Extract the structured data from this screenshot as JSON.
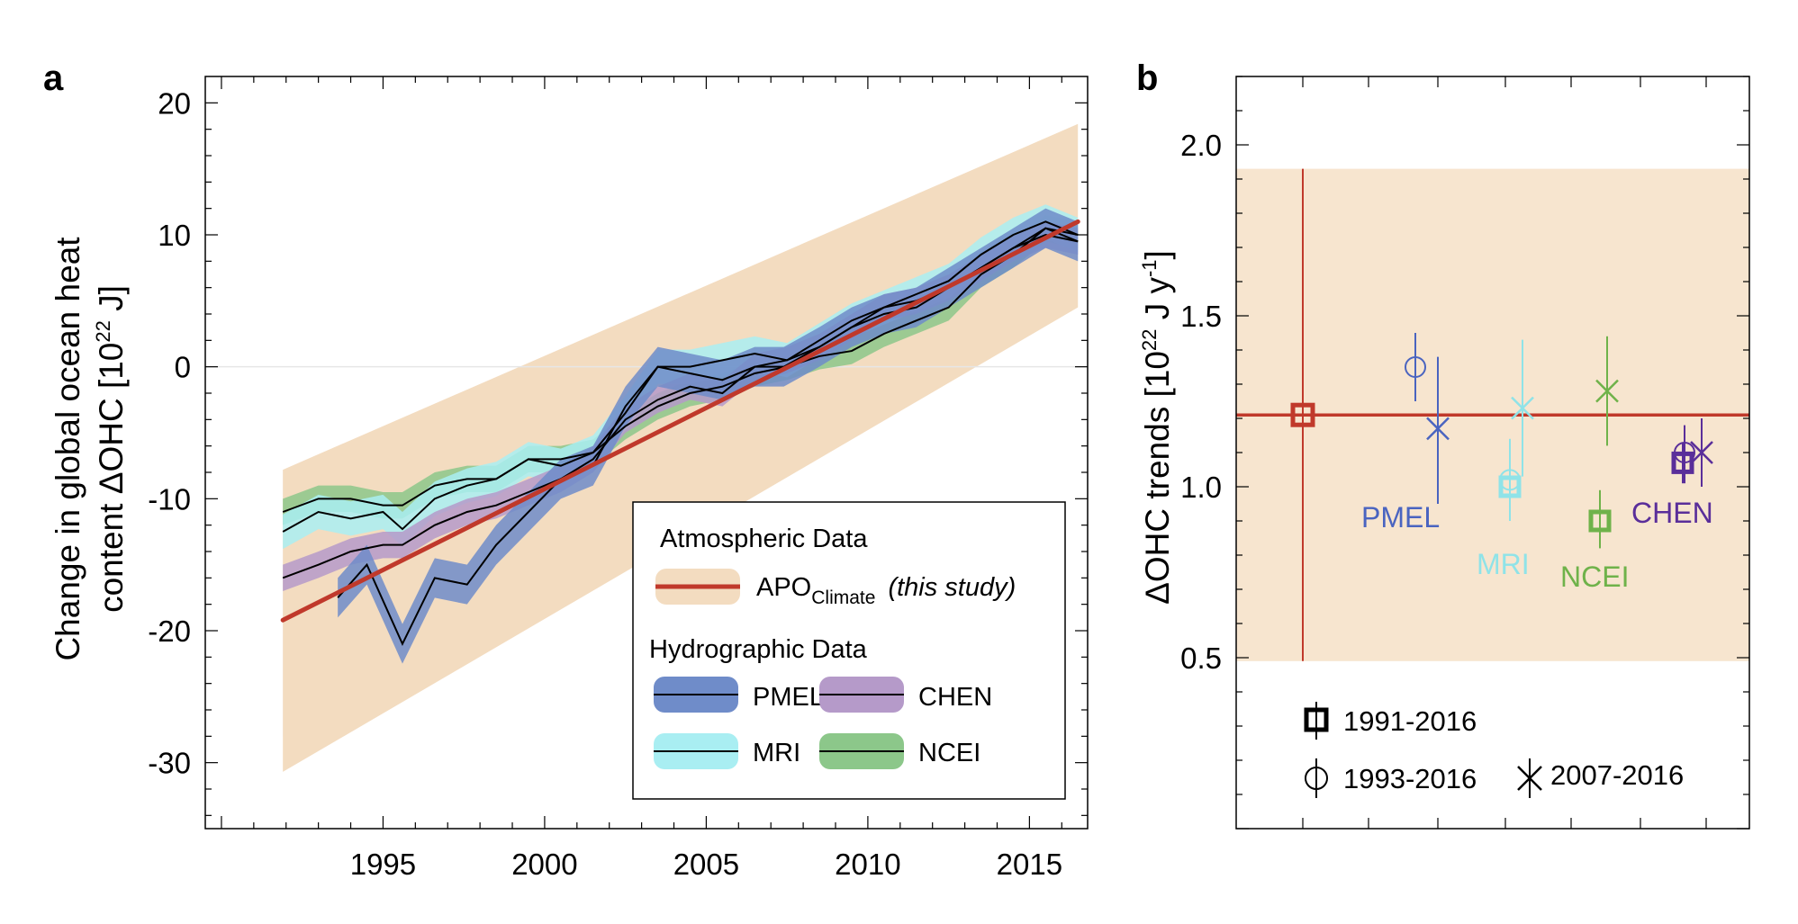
{
  "chart_data": [
    {
      "panel_label": "a",
      "type": "line",
      "ylabel_line1": "Change in global ocean heat",
      "ylabel_line2_pre": "content  ΔOHC  [10",
      "ylabel_sup": "22",
      "ylabel_post": " J]",
      "xlim": [
        1989.5,
        2016.8
      ],
      "ylim": [
        -35,
        22
      ],
      "xticks": [
        1995,
        2000,
        2005,
        2010,
        2015
      ],
      "yticks": [
        20,
        10,
        0,
        -10,
        -20,
        -30
      ],
      "zero_line": true,
      "legend": {
        "placement": "lower-right",
        "atmos_header": "Atmospheric Data",
        "apo_name": "APO",
        "apo_sub": "Climate",
        "apo_note": "(this study)",
        "hydro_header": "Hydrographic Data",
        "entries": [
          "PMEL",
          "CHEN",
          "MRI",
          "NCEI"
        ]
      },
      "colors": {
        "apo_line": "#c0392b",
        "apo_band": "#f3dcc0",
        "PMEL": "#6f8cc9",
        "CHEN": "#b59ac9",
        "MRI": "#a9eef2",
        "NCEI": "#8cc78a"
      },
      "apo": {
        "x": [
          1991.9,
          2016.5
        ],
        "y": [
          -19.2,
          11.0
        ],
        "band_upper": [
          -7.8,
          18.4
        ],
        "band_lower": [
          -30.7,
          4.5
        ]
      },
      "series": [
        {
          "name": "PMEL",
          "x": [
            1993.6,
            1994.5,
            1995.6,
            1996.6,
            1997.6,
            1998.5,
            1999.5,
            2000.5,
            2001.5,
            2002.5,
            2003.5,
            2004.5,
            2005.5,
            2006.5,
            2007.4,
            2008.5,
            2009.5,
            2010.5,
            2011.5,
            2012.5,
            2013.5,
            2014.5,
            2015.5,
            2016.5
          ],
          "y": [
            -17.5,
            -15.0,
            -21.0,
            -16.0,
            -16.5,
            -13.5,
            -11.0,
            -8.5,
            -7.5,
            -3.0,
            0.0,
            -0.5,
            -1.0,
            0.0,
            0.0,
            1.5,
            3.0,
            4.0,
            4.5,
            6.0,
            7.5,
            9.0,
            10.5,
            9.5
          ],
          "band": 1.5
        },
        {
          "name": "CHEN",
          "x": [
            1991.9,
            1993.0,
            1994.0,
            1995.0,
            1995.6,
            1996.6,
            1997.6,
            1998.5,
            1999.5,
            2000.5,
            2001.5,
            2002.5,
            2003.5,
            2004.5,
            2005.5,
            2006.5,
            2007.5,
            2008.5,
            2009.5,
            2010.5,
            2011.5,
            2012.5,
            2013.5,
            2014.5,
            2015.5,
            2016.5
          ],
          "y": [
            -16.0,
            -15.0,
            -14.0,
            -13.5,
            -13.5,
            -12.0,
            -11.0,
            -10.5,
            -9.5,
            -8.5,
            -7.0,
            -4.0,
            -2.5,
            -1.5,
            -2.0,
            0.0,
            0.5,
            1.5,
            3.0,
            4.5,
            5.0,
            6.0,
            7.5,
            9.0,
            10.0,
            9.5
          ],
          "band": 1.0
        },
        {
          "name": "MRI",
          "x": [
            1991.9,
            1993.0,
            1994.0,
            1995.0,
            1995.6,
            1996.6,
            1997.6,
            1998.5,
            1999.5,
            2000.5,
            2001.5,
            2002.5,
            2003.5,
            2004.5,
            2005.5,
            2006.5,
            2007.5,
            2008.5,
            2009.5,
            2010.5,
            2011.5,
            2012.5,
            2013.5,
            2014.5,
            2015.5,
            2016.5
          ],
          "y": [
            -12.5,
            -11.0,
            -11.5,
            -11.0,
            -12.3,
            -10.0,
            -9.0,
            -8.5,
            -7.0,
            -7.5,
            -6.5,
            -3.5,
            0.0,
            0.0,
            0.5,
            1.0,
            0.5,
            2.0,
            3.5,
            4.5,
            5.5,
            6.5,
            8.5,
            10.0,
            11.0,
            10.0
          ],
          "band": 1.3
        },
        {
          "name": "NCEI",
          "x": [
            1991.9,
            1993.0,
            1994.0,
            1995.0,
            1995.6,
            1996.6,
            1997.6,
            1998.5,
            1999.5,
            2000.5,
            2001.5,
            2002.5,
            2003.5,
            2004.5,
            2005.5,
            2006.5,
            2007.5,
            2008.5,
            2009.5,
            2010.5,
            2011.5,
            2012.5,
            2013.5,
            2014.5,
            2015.5,
            2016.5
          ],
          "y": [
            -11.0,
            -10.0,
            -10.0,
            -10.5,
            -10.5,
            -9.0,
            -8.5,
            -8.5,
            -7.0,
            -7.0,
            -6.5,
            -4.5,
            -3.0,
            -2.0,
            -1.5,
            -0.5,
            0.0,
            0.8,
            1.2,
            2.5,
            3.5,
            4.5,
            7.0,
            8.5,
            10.5,
            10.0
          ],
          "band": 1.0
        }
      ]
    },
    {
      "panel_label": "b",
      "type": "scatter",
      "ylabel_pre": "ΔOHC trends [10",
      "ylabel_sup1": "22",
      "ylabel_mid": " J y",
      "ylabel_sup2": "-1",
      "ylabel_post": "]",
      "ylim": [
        0.0,
        2.2
      ],
      "yticks": [
        "2.0",
        "1.5",
        "1.0",
        "0.5"
      ],
      "apo": {
        "trend": 1.21,
        "band": [
          0.49,
          1.93
        ],
        "error": [
          0.49,
          1.93
        ]
      },
      "products": [
        {
          "name": "PMEL",
          "color": "#4a64c0",
          "points": [
            {
              "period": "1993-2016",
              "marker": "circle",
              "value": 1.35,
              "err": [
                1.25,
                1.45
              ]
            },
            {
              "period": "2007-2016",
              "marker": "cross",
              "value": 1.17,
              "err": [
                0.95,
                1.38
              ]
            }
          ]
        },
        {
          "name": "MRI",
          "color": "#8fe3e8",
          "points": [
            {
              "period": "1991-2016",
              "marker": "square",
              "value": 1.0,
              "err": [
                0.97,
                1.03
              ]
            },
            {
              "period": "1993-2016",
              "marker": "circle",
              "value": 1.02,
              "err": [
                0.9,
                1.14
              ]
            },
            {
              "period": "2007-2016",
              "marker": "cross",
              "value": 1.23,
              "err": [
                1.03,
                1.43
              ]
            }
          ]
        },
        {
          "name": "NCEI",
          "color": "#6fb24a",
          "points": [
            {
              "period": "1991-2016",
              "marker": "square",
              "value": 0.9,
              "err": [
                0.82,
                0.99
              ]
            },
            {
              "period": "2007-2016",
              "marker": "cross",
              "value": 1.28,
              "err": [
                1.12,
                1.44
              ]
            }
          ]
        },
        {
          "name": "CHEN",
          "color": "#5a2e9a",
          "points": [
            {
              "period": "1991-2016",
              "marker": "square",
              "value": 1.07,
              "err": [
                1.01,
                1.13
              ]
            },
            {
              "period": "1993-2016",
              "marker": "circle",
              "value": 1.1,
              "err": [
                1.01,
                1.18
              ]
            },
            {
              "period": "2007-2016",
              "marker": "cross",
              "value": 1.1,
              "err": [
                1.0,
                1.2
              ]
            }
          ]
        }
      ],
      "legend": {
        "square_label": "1991-2016",
        "circle_label": "1993-2016",
        "cross_label": "2007-2016"
      }
    }
  ]
}
